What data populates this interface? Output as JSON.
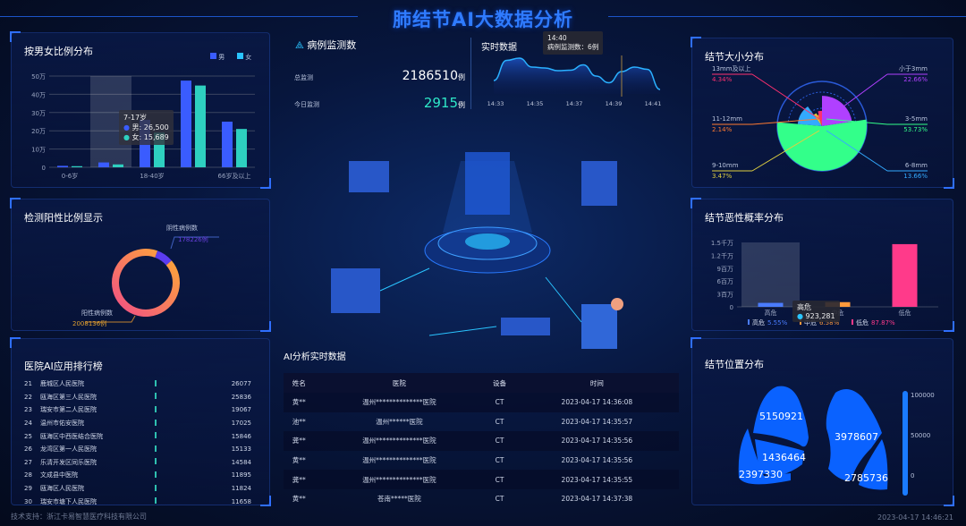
{
  "header": {
    "title": "肺结节AI大数据分析"
  },
  "gender": {
    "title": "按男女比例分布",
    "legend": [
      "男",
      "女"
    ],
    "colors": [
      "#3a5cff",
      "#2ed0c0"
    ],
    "yticks": [
      "50万",
      "40万",
      "30万",
      "20万",
      "10万",
      "0"
    ],
    "tooltip": {
      "label": "7-17岁",
      "male": "男: 26,500",
      "female": "女: 15,689"
    },
    "chart_data": {
      "type": "bar",
      "categories": [
        "0-6岁",
        "",
        "18-40岁",
        "",
        "66岁及以上"
      ],
      "ylim": [
        0,
        50
      ],
      "unit": "万",
      "series": [
        {
          "name": "男",
          "values": [
            0.8,
            2.65,
            26,
            47.5,
            25
          ]
        },
        {
          "name": "女",
          "values": [
            0.6,
            1.57,
            19,
            44.8,
            21
          ]
        }
      ]
    }
  },
  "monitor": {
    "title": "病例监测数",
    "total_label": "总监测",
    "total_value": "2186510",
    "today_label": "今日监测",
    "today_value": "2915",
    "unit": "例"
  },
  "realtime": {
    "title": "实时数据",
    "tooltip_time": "14:40",
    "tooltip_text": "病例监测数：6例",
    "chart_data": {
      "type": "area",
      "xticks": [
        "14:33",
        "14:35",
        "14:37",
        "14:39",
        "14:41"
      ],
      "values": [
        3,
        7.5,
        8,
        6,
        5.8,
        5.2,
        5.3,
        6.5,
        4,
        2.5,
        5,
        6,
        5.5,
        1
      ]
    }
  },
  "positive": {
    "title": "检测阳性比例显示",
    "chart_data": {
      "type": "pie",
      "slices": [
        {
          "name": "阴性病例数",
          "value": 178226,
          "label": "178226例",
          "color": "#5b3cf0"
        },
        {
          "name": "阳性病例数",
          "value": 2008136,
          "label": "2008136例",
          "color": "#ff9a3c"
        }
      ]
    }
  },
  "ranking": {
    "title": "医院AI应用排行榜",
    "rows": [
      {
        "rank": "21",
        "name": "鹿城区人民医院",
        "value": "26077"
      },
      {
        "rank": "22",
        "name": "瓯海区第三人民医院",
        "value": "25836"
      },
      {
        "rank": "23",
        "name": "瑞安市第二人民医院",
        "value": "19067"
      },
      {
        "rank": "24",
        "name": "温州市佑安医院",
        "value": "17025"
      },
      {
        "rank": "25",
        "name": "瓯海区中西医结合医院",
        "value": "15846"
      },
      {
        "rank": "26",
        "name": "龙湾区第一人民医院",
        "value": "15133"
      },
      {
        "rank": "27",
        "name": "乐清开发区同乐医院",
        "value": "14584"
      },
      {
        "rank": "28",
        "name": "文成县中医院",
        "value": "11895"
      },
      {
        "rank": "29",
        "name": "瓯海区人民医院",
        "value": "11824"
      },
      {
        "rank": "30",
        "name": "瑞安市塘下人民医院",
        "value": "11658"
      }
    ]
  },
  "ai_table": {
    "title": "AI分析实时数据",
    "headers": [
      "姓名",
      "医院",
      "设备",
      "时间"
    ],
    "rows": [
      [
        "黄**",
        "温州**************医院",
        "CT",
        "2023-04-17 14:36:08"
      ],
      [
        "池**",
        "温州******医院",
        "CT",
        "2023-04-17 14:35:57"
      ],
      [
        "龚**",
        "温州**************医院",
        "CT",
        "2023-04-17 14:35:56"
      ],
      [
        "黄**",
        "温州**************医院",
        "CT",
        "2023-04-17 14:35:56"
      ],
      [
        "龚**",
        "温州**************医院",
        "CT",
        "2023-04-17 14:35:55"
      ],
      [
        "黄**",
        "苍南*****医院",
        "CT",
        "2023-04-17 14:37:38"
      ]
    ]
  },
  "size": {
    "title": "结节大小分布",
    "chart_data": {
      "type": "pie",
      "rose": true,
      "slices": [
        {
          "name": "小于3mm",
          "pct": "22.66%",
          "value": 22.66,
          "color": "#b040ff"
        },
        {
          "name": "3-5mm",
          "pct": "53.73%",
          "value": 53.73,
          "color": "#33ff8a"
        },
        {
          "name": "6-8mm",
          "pct": "13.66%",
          "value": 13.66,
          "color": "#33aaff"
        },
        {
          "name": "9-10mm",
          "pct": "3.47%",
          "value": 3.47,
          "color": "#e0d040"
        },
        {
          "name": "11-12mm",
          "pct": "2.14%",
          "value": 2.14,
          "color": "#ff7a30"
        },
        {
          "name": "13mm及以上",
          "pct": "4.34%",
          "value": 4.34,
          "color": "#ff3070"
        }
      ]
    }
  },
  "malignancy": {
    "title": "结节恶性概率分布",
    "yticks": [
      "1.5千万",
      "1.2千万",
      "9百万",
      "6百万",
      "3百万",
      "0"
    ],
    "tooltip": {
      "label": "高危",
      "value": "923,281"
    },
    "chart_data": {
      "type": "bar",
      "categories": [
        "高危",
        "中危",
        "低危"
      ],
      "ylim": [
        0,
        15000000
      ],
      "values": [
        923281,
        1094000,
        14600000
      ],
      "pcts": [
        "5.55%",
        "6.58%",
        "87.87%"
      ],
      "colors": [
        "#4a7cff",
        "#ff9a3c",
        "#ff3a8a"
      ]
    }
  },
  "location": {
    "title": "结节位置分布",
    "values": [
      "5150921",
      "1436464",
      "2397330",
      "3978607",
      "2785736"
    ],
    "scale": [
      "100000",
      "50000",
      "0"
    ]
  },
  "footer": {
    "support": "技术支持：浙江卡易智慧医疗科技有限公司",
    "datetime": "2023-04-17 14:46:21"
  }
}
